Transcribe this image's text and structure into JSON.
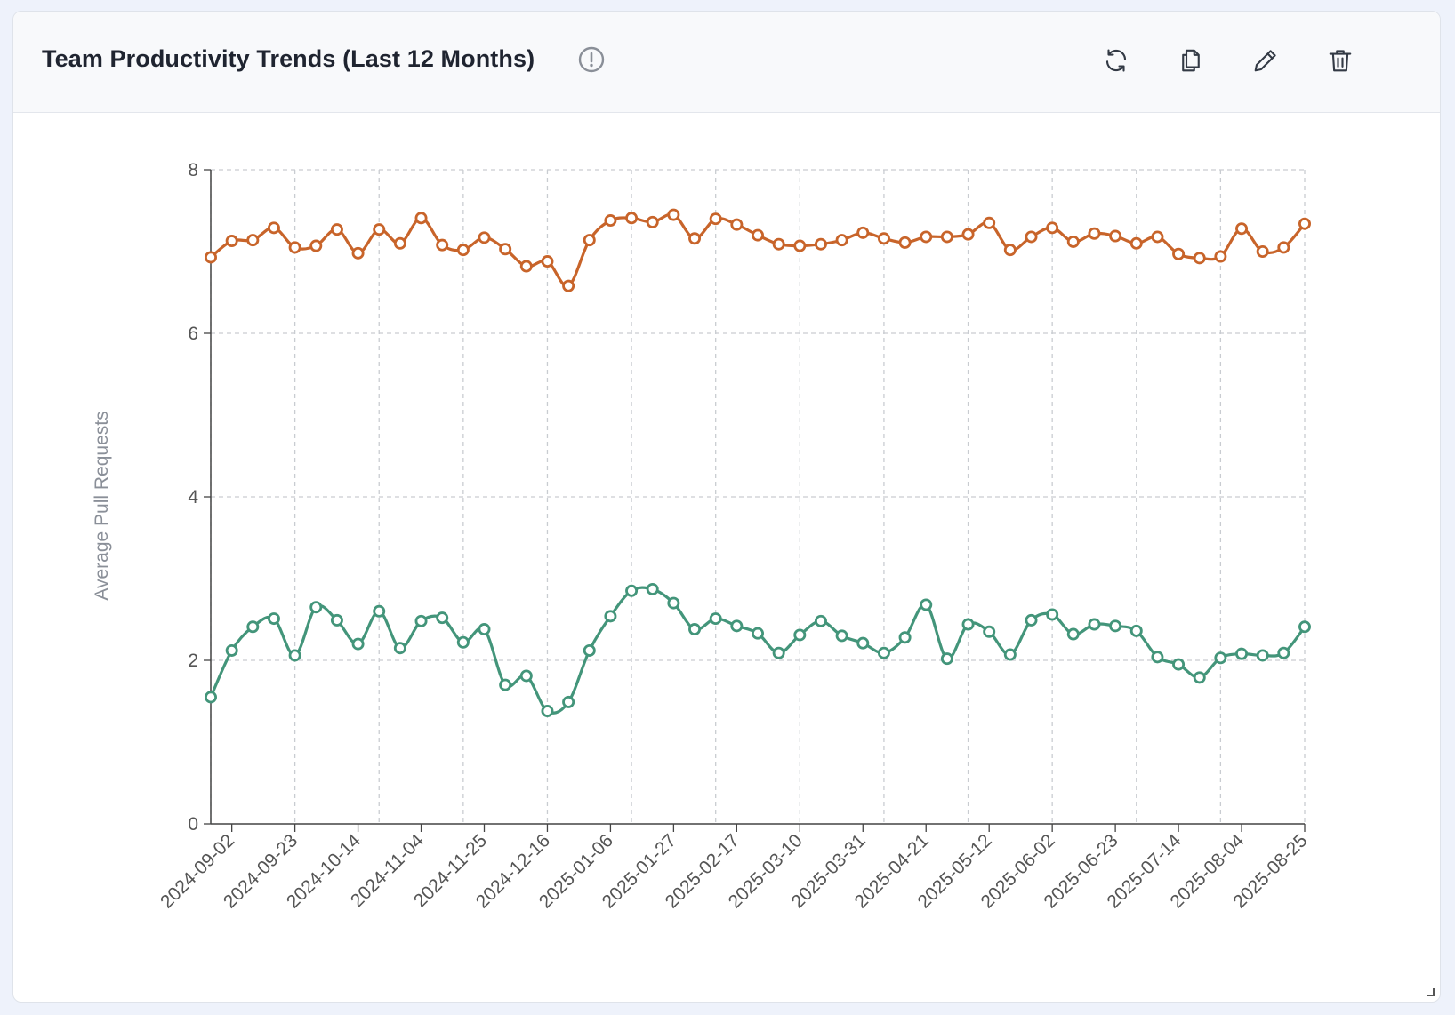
{
  "card": {
    "title": "Team Productivity Trends (Last 12 Months)",
    "icons": [
      "info-icon",
      "refresh-icon",
      "copy-icon",
      "edit-icon",
      "delete-icon",
      "resize-handle-icon"
    ]
  },
  "colors": {
    "series_orange": "#c8642a",
    "series_green": "#43957a",
    "grid": "#c9ccd1",
    "axis": "#444444",
    "tick_text": "#555555"
  },
  "chart_data": {
    "type": "line",
    "ylabel": "Average Pull Requests",
    "xlabel": "",
    "ylim": [
      0,
      8
    ],
    "yticks": [
      0,
      2,
      4,
      6,
      8
    ],
    "grid": true,
    "x_start": "2024-08-26",
    "x_end": "2025-08-25",
    "xtick_labels": [
      "2024-09-02",
      "2024-09-23",
      "2024-10-14",
      "2024-11-04",
      "2024-11-25",
      "2024-12-16",
      "2025-01-06",
      "2025-01-27",
      "2025-02-17",
      "2025-03-10",
      "2025-03-31",
      "2025-04-21",
      "2025-05-12",
      "2025-06-02",
      "2025-06-23",
      "2025-07-14",
      "2025-08-04",
      "2025-08-25"
    ],
    "series": [
      {
        "color": "#c8642a",
        "values": [
          6.93,
          7.13,
          7.14,
          7.29,
          7.05,
          7.07,
          7.27,
          6.98,
          7.27,
          7.1,
          7.41,
          7.08,
          7.02,
          7.17,
          7.03,
          6.82,
          6.88,
          6.58,
          7.14,
          7.38,
          7.41,
          7.36,
          7.45,
          7.16,
          7.4,
          7.33,
          7.2,
          7.09,
          7.07,
          7.09,
          7.14,
          7.23,
          7.16,
          7.11,
          7.18,
          7.18,
          7.21,
          7.35,
          7.02,
          7.18,
          7.29,
          7.12,
          7.22,
          7.19,
          7.1,
          7.18,
          6.97,
          6.92,
          6.94,
          7.28,
          7.0,
          7.05,
          7.34
        ]
      },
      {
        "color": "#43957a",
        "values": [
          1.55,
          2.12,
          2.41,
          2.51,
          2.06,
          2.65,
          2.49,
          2.2,
          2.6,
          2.15,
          2.48,
          2.52,
          2.22,
          2.38,
          1.7,
          1.81,
          1.38,
          1.49,
          2.12,
          2.54,
          2.85,
          2.87,
          2.7,
          2.38,
          2.51,
          2.42,
          2.33,
          2.09,
          2.31,
          2.48,
          2.3,
          2.21,
          2.09,
          2.28,
          2.68,
          2.02,
          2.44,
          2.35,
          2.07,
          2.49,
          2.56,
          2.32,
          2.44,
          2.42,
          2.36,
          2.04,
          1.95,
          1.79,
          2.03,
          2.08,
          2.06,
          2.09,
          2.41
        ]
      }
    ]
  }
}
